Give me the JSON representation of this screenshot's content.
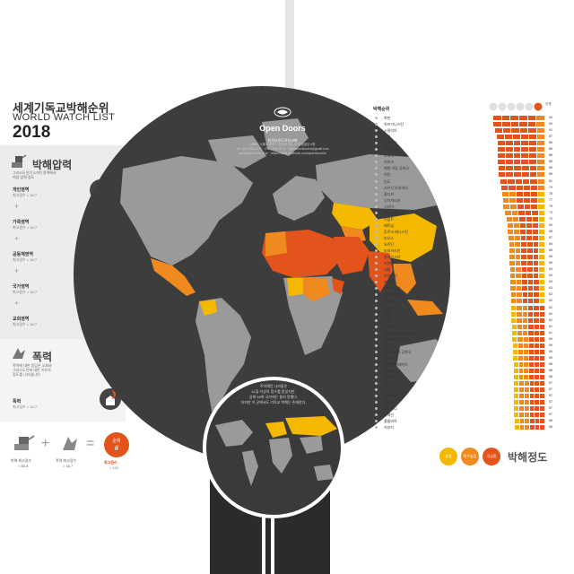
{
  "title_ko": "세계기독교박해순위",
  "title_en": "WORLD WATCH LIST",
  "year": "2018",
  "org": {
    "name": "Open Doors",
    "name_ko": "한국오픈도어선교회",
    "address": "02857 서울시 성북구 안암로 9길 10 영생빌딩 4층",
    "tel": "Tel. (02)-596-3171 · 070-7522-3171 · opendoorskorea@gmail.com",
    "web": "www.opendoors.or.kr · https://www.facebook.com/opendoorsko"
  },
  "pressure": {
    "title": "박해압력",
    "desc1": "그리스도인이 5가지 영역에서",
    "desc2": "억압 압력 정도",
    "items": [
      {
        "name": "개인영역",
        "sub": "최고점수 = 16.7"
      },
      {
        "name": "가족영역",
        "sub": "최고점수 = 16.7"
      },
      {
        "name": "공동체영역",
        "sub": "최고점수 = 16.7"
      },
      {
        "name": "국가영역",
        "sub": "최고점수 = 16.7"
      },
      {
        "name": "교회영역",
        "sub": "최고점수 = 16.7"
      }
    ]
  },
  "violence": {
    "title": "폭력",
    "desc1": "폭력에 대한 응답은 교회와",
    "desc2": "그리스도인에 대한 이유의",
    "desc3": "정도를 나타냅니다.",
    "item": {
      "name": "폭력",
      "sub": "최고점수 = 16.7"
    }
  },
  "formula": {
    "a_label": "박해 최고점수",
    "a_sub": "= 83.3",
    "b_label": "폭력 최고점수",
    "b_sub": "= 16.7",
    "result_top": "순위",
    "result_mark": "#",
    "result_label": "최고점수",
    "result_sub": "= 100",
    "plus": "+",
    "equals": "="
  },
  "inset": {
    "line1": "주의해진 나라들은",
    "line2": "41점 이상의 점수를 받았지만,",
    "line3": "상위 50위 국가에는 들지 못했다.",
    "line4": "하지만 이 곳에서도 기독교 박해는 존재한다."
  },
  "ranklist_title": "박해순위",
  "score_header": "전체",
  "ranking": [
    {
      "rank": "1",
      "name": "북한",
      "score": "94"
    },
    {
      "rank": "2",
      "name": "아프가니스탄",
      "score": "93"
    },
    {
      "rank": "3",
      "name": "소말리아",
      "score": "91"
    },
    {
      "rank": "4",
      "name": "수단",
      "score": "87"
    },
    {
      "rank": "5",
      "name": "파키스탄",
      "score": "86"
    },
    {
      "rank": "6",
      "name": "에리트레아",
      "score": "86"
    },
    {
      "rank": "7",
      "name": "리비아",
      "score": "86"
    },
    {
      "rank": "8",
      "name": "이라크",
      "score": "86"
    },
    {
      "rank": "9",
      "name": "예멘 아랍 공화국",
      "score": "85"
    },
    {
      "rank": "10",
      "name": "이란",
      "score": "85"
    },
    {
      "rank": "11",
      "name": "인도",
      "score": "81"
    },
    {
      "rank": "12",
      "name": "사우디 아라비아",
      "score": "79"
    },
    {
      "rank": "13",
      "name": "몰디브",
      "score": "78"
    },
    {
      "rank": "14",
      "name": "나이지리아",
      "score": "77"
    },
    {
      "rank": "15",
      "name": "시리아",
      "score": "76"
    },
    {
      "rank": "16",
      "name": "우즈베키스탄",
      "score": "73"
    },
    {
      "rank": "17",
      "name": "이집트",
      "score": "70"
    },
    {
      "rank": "18",
      "name": "베트남",
      "score": "69"
    },
    {
      "rank": "19",
      "name": "투르크 메니스탄",
      "score": "68"
    },
    {
      "rank": "20",
      "name": "라오스",
      "score": "67"
    },
    {
      "rank": "21",
      "name": "요르단",
      "score": "66"
    },
    {
      "rank": "22",
      "name": "타지키스탄",
      "score": "65"
    },
    {
      "rank": "23",
      "name": "말레이시아",
      "score": "65"
    },
    {
      "rank": "24",
      "name": "미얀마",
      "score": "65"
    },
    {
      "rank": "25",
      "name": "네팔",
      "score": "64"
    },
    {
      "rank": "26",
      "name": "브루나이",
      "score": "64"
    },
    {
      "rank": "27",
      "name": "카타르",
      "score": "63"
    },
    {
      "rank": "28",
      "name": "카자흐스탄",
      "score": "63"
    },
    {
      "rank": "29",
      "name": "에티오피아",
      "score": "62"
    },
    {
      "rank": "30",
      "name": "튀니지",
      "score": "62"
    },
    {
      "rank": "31",
      "name": "터키",
      "score": "62"
    },
    {
      "rank": "32",
      "name": "케냐",
      "score": "62"
    },
    {
      "rank": "33",
      "name": "부탄",
      "score": "62"
    },
    {
      "rank": "34",
      "name": "쿠웨이트",
      "score": "61"
    },
    {
      "rank": "35",
      "name": "중앙 아프리카 공화국",
      "score": "61"
    },
    {
      "rank": "36",
      "name": "팔레스타인 영토",
      "score": "60"
    },
    {
      "rank": "37",
      "name": "말리",
      "score": "59"
    },
    {
      "rank": "38",
      "name": "인도네시아 공화국",
      "score": "59"
    },
    {
      "rank": "39",
      "name": "멕시코",
      "score": "59"
    },
    {
      "rank": "40",
      "name": "아랍 에미레이트",
      "score": "58"
    },
    {
      "rank": "41",
      "name": "방글라데시",
      "score": "58"
    },
    {
      "rank": "42",
      "name": "알제리아",
      "score": "58"
    },
    {
      "rank": "43",
      "name": "중국",
      "score": "57"
    },
    {
      "rank": "44",
      "name": "스리랑카",
      "score": "57"
    },
    {
      "rank": "45",
      "name": "아제르바이잔",
      "score": "57"
    },
    {
      "rank": "46",
      "name": "오만",
      "score": "57"
    },
    {
      "rank": "47",
      "name": "모리타니",
      "score": "57"
    },
    {
      "rank": "48",
      "name": "바레인",
      "score": "57"
    },
    {
      "rank": "49",
      "name": "콜롬비아",
      "score": "56"
    },
    {
      "rank": "50",
      "name": "지부티",
      "score": "56"
    }
  ],
  "legend": {
    "title": "박해정도",
    "levels": [
      {
        "label": "높음",
        "color": "#f5b800"
      },
      {
        "label": "매우높음",
        "color": "#f08a1f"
      },
      {
        "label": "극심함",
        "color": "#e2541c"
      }
    ]
  },
  "colors": {
    "extreme": "#e2541c",
    "very_high": "#f08a1f",
    "high": "#f5b800",
    "land": "#9a9a9a",
    "ocean": "#3d3d3d",
    "accent": "#e2541c"
  }
}
